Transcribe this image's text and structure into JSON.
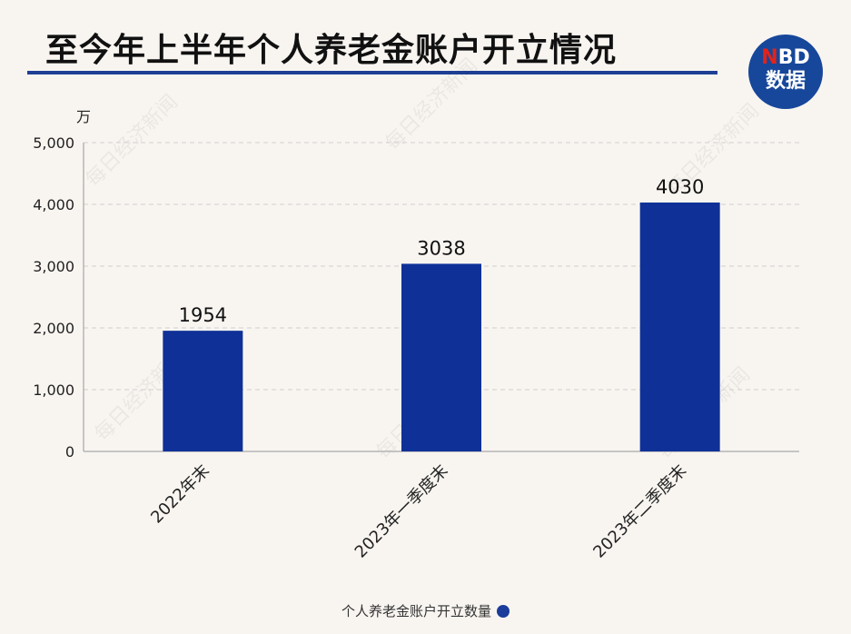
{
  "header": {
    "title": "至今年上半年个人养老金账户开立情况",
    "logo_line1_prefix": "N",
    "logo_line1_rest": "BD",
    "logo_line2": "数据"
  },
  "watermark": "每日经济新闻",
  "colors": {
    "bar": "#0f3197",
    "title_rule": "#1f3f95",
    "logo_bg": "#17479a",
    "logo_accent": "#e2231a",
    "background": "#f8f5f1"
  },
  "chart_data": {
    "type": "bar",
    "categories": [
      "2022年末",
      "2023年一季度末",
      "2023年二季度末"
    ],
    "series": [
      {
        "name": "个人养老金账户开立数量",
        "values": [
          1954,
          3038,
          4030
        ]
      }
    ],
    "data_labels": [
      "1954",
      "3038",
      "4030"
    ],
    "y_unit": "万",
    "ylim": [
      0,
      5000
    ],
    "y_ticks": [
      0,
      1000,
      2000,
      3000,
      4000,
      5000
    ],
    "y_tick_labels": [
      "0",
      "1,000",
      "2,000",
      "3,000",
      "4,000",
      "5,000"
    ],
    "grid": true,
    "legend_position": "bottom"
  }
}
